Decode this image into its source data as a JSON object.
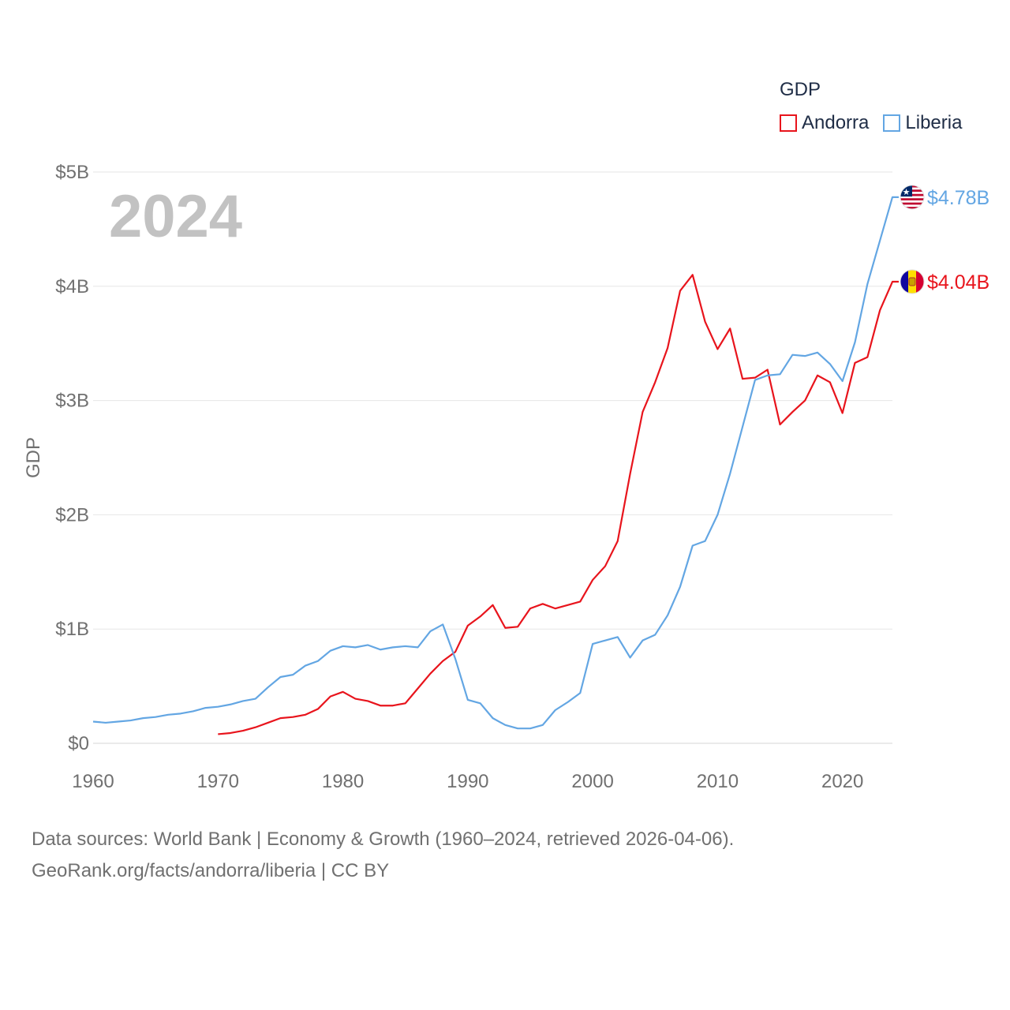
{
  "chart_data": {
    "type": "line",
    "year_label": "2024",
    "ylabel": "GDP",
    "xlabel": "",
    "ylim": [
      0,
      5
    ],
    "xlim": [
      1960,
      2024
    ],
    "y_ticks": [
      0,
      1,
      2,
      3,
      4,
      5
    ],
    "y_tick_labels": [
      "$0",
      "$1B",
      "$2B",
      "$3B",
      "$4B",
      "$5B"
    ],
    "x_ticks": [
      1960,
      1970,
      1980,
      1990,
      2000,
      2010,
      2020
    ],
    "x_tick_labels": [
      "1960",
      "1970",
      "1980",
      "1990",
      "2000",
      "2010",
      "2020"
    ],
    "legend_title": "GDP",
    "legend_position": "top-right",
    "grid": true,
    "series": [
      {
        "name": "Andorra",
        "color": "#e8141c",
        "end_label": "$4.04B",
        "flag": "andorra-flag",
        "start_year": 1970,
        "values": [
          0.08,
          0.09,
          0.11,
          0.14,
          0.18,
          0.22,
          0.23,
          0.25,
          0.3,
          0.41,
          0.45,
          0.39,
          0.37,
          0.33,
          0.33,
          0.35,
          0.48,
          0.61,
          0.72,
          0.8,
          1.03,
          1.11,
          1.21,
          1.01,
          1.02,
          1.18,
          1.22,
          1.18,
          1.21,
          1.24,
          1.43,
          1.55,
          1.77,
          2.36,
          2.9,
          3.16,
          3.46,
          3.96,
          4.1,
          3.69,
          3.45,
          3.63,
          3.19,
          3.2,
          3.27,
          2.79,
          2.9,
          3.0,
          3.22,
          3.16,
          2.89,
          3.33,
          3.38,
          3.79,
          4.04
        ]
      },
      {
        "name": "Liberia",
        "color": "#63a6e3",
        "end_label": "$4.78B",
        "flag": "liberia-flag",
        "start_year": 1960,
        "values": [
          0.19,
          0.18,
          0.19,
          0.2,
          0.22,
          0.23,
          0.25,
          0.26,
          0.28,
          0.31,
          0.32,
          0.34,
          0.37,
          0.39,
          0.49,
          0.58,
          0.6,
          0.68,
          0.72,
          0.81,
          0.85,
          0.84,
          0.86,
          0.82,
          0.84,
          0.85,
          0.84,
          0.98,
          1.04,
          0.74,
          0.38,
          0.35,
          0.22,
          0.16,
          0.13,
          0.13,
          0.16,
          0.29,
          0.36,
          0.44,
          0.87,
          0.9,
          0.93,
          0.75,
          0.9,
          0.95,
          1.12,
          1.37,
          1.73,
          1.77,
          2.0,
          2.36,
          2.77,
          3.18,
          3.22,
          3.23,
          3.4,
          3.39,
          3.42,
          3.32,
          3.17,
          3.51,
          4.02,
          4.4,
          4.78
        ]
      }
    ]
  },
  "footer": {
    "line1": "Data sources: World Bank | Economy & Growth (1960–2024, retrieved 2026-04-06).",
    "line2": "GeoRank.org/facts/andorra/liberia | CC BY"
  }
}
